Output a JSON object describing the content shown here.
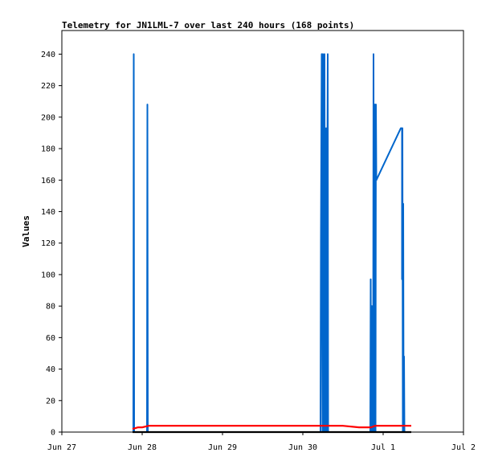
{
  "chart_data": {
    "type": "line",
    "title": "Telemetry for JN1LML-7 over last 240 hours (168 points)",
    "xlabel": "",
    "ylabel": "Values",
    "x_axis": {
      "unit": "days since Jun 27",
      "range": [
        0,
        5
      ],
      "ticks": [
        {
          "value": 0,
          "label": "Jun 27"
        },
        {
          "value": 1,
          "label": "Jun 28"
        },
        {
          "value": 2,
          "label": "Jun 29"
        },
        {
          "value": 3,
          "label": "Jun 30"
        },
        {
          "value": 4,
          "label": "Jul 1"
        },
        {
          "value": 5,
          "label": "Jul 2"
        }
      ]
    },
    "y_axis": {
      "range": [
        0,
        255
      ],
      "ticks": [
        0,
        20,
        40,
        60,
        80,
        100,
        120,
        140,
        160,
        180,
        200,
        220,
        240
      ]
    },
    "grid": false,
    "legend": "none",
    "series": [
      {
        "color": "#0066cc",
        "points": [
          [
            0.89,
            0
          ],
          [
            0.895,
            240
          ],
          [
            0.9,
            0
          ],
          [
            1.06,
            0
          ],
          [
            1.065,
            208
          ],
          [
            1.07,
            0
          ],
          [
            3.22,
            0
          ],
          [
            3.225,
            120
          ],
          [
            3.235,
            240
          ],
          [
            3.245,
            0
          ],
          [
            3.25,
            240
          ],
          [
            3.255,
            140
          ],
          [
            3.26,
            145
          ],
          [
            3.265,
            0
          ],
          [
            3.27,
            240
          ],
          [
            3.275,
            0
          ],
          [
            3.28,
            190
          ],
          [
            3.285,
            175
          ],
          [
            3.29,
            193
          ],
          [
            3.295,
            0
          ],
          [
            3.31,
            240
          ],
          [
            3.315,
            0
          ],
          [
            3.84,
            0
          ],
          [
            3.845,
            97
          ],
          [
            3.85,
            0
          ],
          [
            3.86,
            80
          ],
          [
            3.865,
            0
          ],
          [
            3.87,
            40
          ],
          [
            3.875,
            0
          ],
          [
            3.88,
            240
          ],
          [
            3.885,
            0
          ],
          [
            3.89,
            208
          ],
          [
            3.895,
            160
          ],
          [
            3.9,
            208
          ],
          [
            3.905,
            0
          ],
          [
            3.91,
            208
          ],
          [
            3.915,
            160
          ],
          [
            4.22,
            193
          ],
          [
            4.235,
            193
          ],
          [
            4.235,
            97
          ],
          [
            4.24,
            193
          ],
          [
            4.245,
            0
          ],
          [
            4.25,
            145
          ],
          [
            4.255,
            0
          ],
          [
            4.26,
            48
          ],
          [
            4.265,
            0
          ]
        ]
      },
      {
        "color": "#ff0000",
        "points": [
          [
            0.88,
            2
          ],
          [
            0.95,
            3
          ],
          [
            1.0,
            3
          ],
          [
            1.08,
            4
          ],
          [
            2.0,
            4
          ],
          [
            3.0,
            4
          ],
          [
            3.3,
            4
          ],
          [
            3.5,
            4
          ],
          [
            3.7,
            3
          ],
          [
            3.72,
            3
          ],
          [
            3.85,
            3
          ],
          [
            3.9,
            4
          ],
          [
            4.0,
            4
          ],
          [
            4.2,
            4
          ],
          [
            4.35,
            4
          ]
        ]
      },
      {
        "color": "#000000",
        "points": [
          [
            0.88,
            0
          ],
          [
            1.0,
            0
          ],
          [
            2.0,
            0
          ],
          [
            3.0,
            0
          ],
          [
            4.0,
            0
          ],
          [
            4.35,
            0
          ]
        ]
      }
    ]
  }
}
